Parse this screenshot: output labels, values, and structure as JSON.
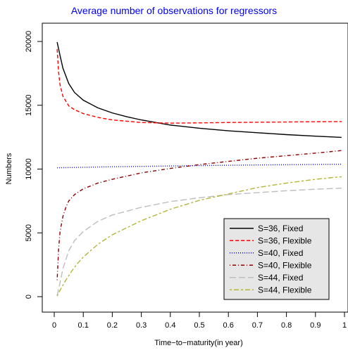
{
  "chart_data": {
    "type": "line",
    "title": "Average number of observations for regressors",
    "title_color": "#0000ff",
    "xlabel": "Time−to−maturity(in year)",
    "ylabel": "Numbers",
    "xlim": [
      0,
      1
    ],
    "ylim": [
      0,
      20000
    ],
    "x_ticks": [
      0,
      0.1,
      0.2,
      0.3,
      0.4,
      0.5,
      0.6,
      0.7,
      0.8,
      0.9,
      1
    ],
    "x_tick_labels": [
      "0",
      "0.1",
      "0.2",
      "0.3",
      "0.4",
      "0.5",
      "0.6",
      "0.7",
      "0.8",
      "0.9",
      "1"
    ],
    "y_ticks": [
      0,
      5000,
      10000,
      15000,
      20000
    ],
    "y_tick_labels": [
      "0",
      "5000",
      "10000",
      "15000",
      "20000"
    ],
    "grid": false,
    "legend_position": "bottom-right",
    "series": [
      {
        "name": "S=36, Fixed",
        "color": "#000000",
        "dash": "solid",
        "x": [
          0.01,
          0.02,
          0.03,
          0.05,
          0.07,
          0.1,
          0.15,
          0.2,
          0.25,
          0.3,
          0.4,
          0.5,
          0.6,
          0.7,
          0.8,
          0.9,
          0.99
        ],
        "y": [
          19950,
          18900,
          17900,
          16700,
          16000,
          15400,
          14800,
          14400,
          14100,
          13850,
          13450,
          13200,
          13000,
          12850,
          12700,
          12580,
          12480
        ]
      },
      {
        "name": "S=36, Flexible",
        "color": "#ff0000",
        "dash": "dashed",
        "x": [
          0.01,
          0.015,
          0.02,
          0.03,
          0.05,
          0.07,
          0.1,
          0.15,
          0.2,
          0.3,
          0.4,
          0.5,
          0.6,
          0.7,
          0.8,
          0.9,
          0.99
        ],
        "y": [
          19400,
          17600,
          16600,
          15700,
          14950,
          14650,
          14350,
          14050,
          13850,
          13650,
          13600,
          13620,
          13650,
          13670,
          13690,
          13710,
          13720
        ]
      },
      {
        "name": "S=40, Fixed",
        "color": "#0000ff",
        "dash": "dotted",
        "x": [
          0.01,
          0.1,
          0.2,
          0.3,
          0.4,
          0.5,
          0.6,
          0.7,
          0.8,
          0.9,
          0.99
        ],
        "y": [
          10100,
          10140,
          10180,
          10210,
          10240,
          10270,
          10300,
          10320,
          10340,
          10360,
          10380
        ]
      },
      {
        "name": "S=40, Flexible",
        "color": "#8b0000",
        "dash": "dotdash",
        "x": [
          0.01,
          0.015,
          0.02,
          0.03,
          0.04,
          0.05,
          0.07,
          0.1,
          0.15,
          0.2,
          0.3,
          0.4,
          0.5,
          0.6,
          0.7,
          0.8,
          0.9,
          0.99
        ],
        "y": [
          1300,
          3700,
          5100,
          6300,
          7000,
          7500,
          8000,
          8450,
          8900,
          9200,
          9700,
          10050,
          10350,
          10600,
          10850,
          11050,
          11250,
          11450
        ]
      },
      {
        "name": "S=44, Fixed",
        "color": "#bebebe",
        "dash": "longdash",
        "x": [
          0.01,
          0.02,
          0.03,
          0.05,
          0.07,
          0.1,
          0.15,
          0.2,
          0.3,
          0.4,
          0.5,
          0.6,
          0.7,
          0.8,
          0.9,
          0.99
        ],
        "y": [
          100,
          1100,
          2200,
          3600,
          4400,
          5100,
          5900,
          6400,
          7000,
          7450,
          7750,
          8000,
          8150,
          8300,
          8420,
          8500
        ]
      },
      {
        "name": "S=44, Flexible",
        "color": "#b5b53e",
        "dash": "twodash",
        "x": [
          0.01,
          0.02,
          0.04,
          0.06,
          0.08,
          0.1,
          0.15,
          0.2,
          0.3,
          0.4,
          0.5,
          0.6,
          0.7,
          0.8,
          0.9,
          0.99
        ],
        "y": [
          50,
          500,
          1300,
          2000,
          2600,
          3100,
          4100,
          4850,
          5950,
          6850,
          7550,
          8050,
          8550,
          8900,
          9200,
          9400
        ]
      }
    ]
  }
}
